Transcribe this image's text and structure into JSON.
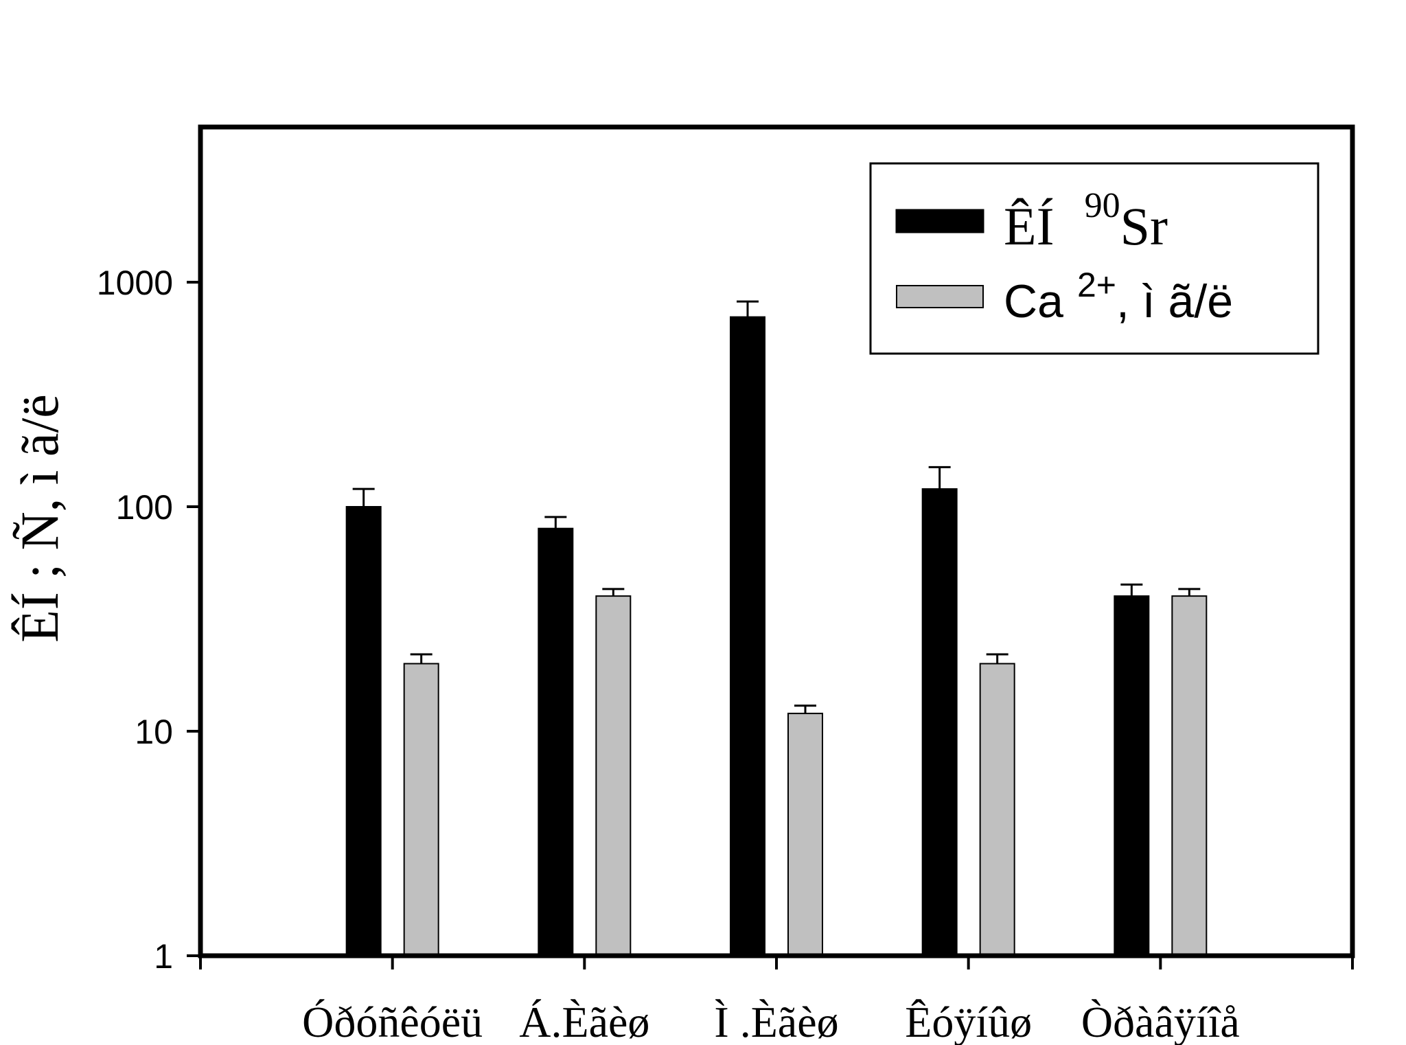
{
  "chart_data": {
    "type": "bar",
    "title": "",
    "ylabel": "ÊÍ ; Ñ, ì ã/ë",
    "xlabel": "",
    "y_scale": "log",
    "ylim": [
      1,
      5000
    ],
    "y_ticks": [
      1,
      10,
      100,
      1000
    ],
    "y_tick_labels": [
      "1",
      "10",
      "100",
      "1000"
    ],
    "grid": false,
    "legend_position": "top-right",
    "categories": [
      "Óðóñêóëü",
      "Á.Èãèø",
      "Ì .Èãèø",
      "Êóÿíûø",
      "Òðàâÿíîå"
    ],
    "series": [
      {
        "name": "ÊÍ",
        "name_superscript": "90",
        "name_suffix": "Sr",
        "color": "#000000",
        "values": [
          100,
          80,
          700,
          120,
          40
        ],
        "errors": [
          20,
          10,
          120,
          30,
          5
        ]
      },
      {
        "name": "Ca",
        "name_superscript": "2+",
        "name_suffix": ", ì ã/ë",
        "color": "#c0c0c0",
        "values": [
          20,
          40,
          12,
          20,
          40
        ],
        "errors": [
          2,
          3,
          1,
          2,
          3
        ]
      }
    ]
  }
}
